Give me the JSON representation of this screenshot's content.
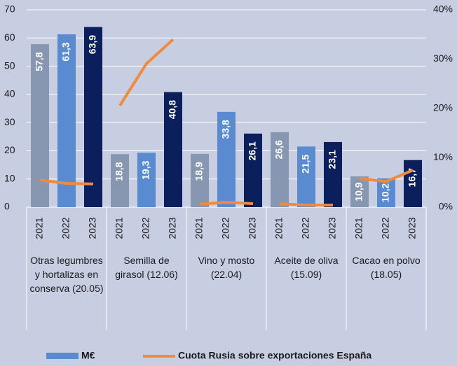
{
  "chart_data": {
    "type": "bar",
    "categories": [
      "Otras legumbres y hortalizas en conserva (20.05)",
      "Semilla de girasol (12.06)",
      "Vino y mosto (22.04)",
      "Aceite de oliva  (15.09)",
      "Cacao en polvo (18.05)"
    ],
    "years": [
      "2021",
      "2022",
      "2023"
    ],
    "year_colors": [
      "#8797b2",
      "#5a8bd0",
      "#0b1f5c"
    ],
    "series": [
      {
        "name": "M€",
        "type": "bar",
        "color": "#5a8bd0",
        "values": [
          [
            57.8,
            61.3,
            63.9
          ],
          [
            18.8,
            19.3,
            40.8
          ],
          [
            18.9,
            33.8,
            26.1
          ],
          [
            26.6,
            21.5,
            23.1
          ],
          [
            10.9,
            10.2,
            16.7
          ]
        ],
        "value_labels": [
          [
            "57,8",
            "61,3",
            "63,9"
          ],
          [
            "18,8",
            "19,3",
            "40,8"
          ],
          [
            "18,9",
            "33,8",
            "26,1"
          ],
          [
            "26,6",
            "21,5",
            "23,1"
          ],
          [
            "10,9",
            "10,2",
            "16,7"
          ]
        ]
      },
      {
        "name": "Cuota Rusia sobre exportaciones España",
        "type": "line",
        "color": "#f08a3c",
        "axis": "y2",
        "values": [
          [
            5.5,
            4.8,
            4.7
          ],
          [
            20.6,
            29.1,
            34.0
          ],
          [
            0.6,
            1.0,
            0.7
          ],
          [
            0.7,
            0.4,
            0.4
          ],
          [
            5.8,
            5.2,
            7.5
          ]
        ]
      }
    ],
    "ylim": [
      0,
      70
    ],
    "yticks": [
      0,
      10,
      20,
      30,
      40,
      50,
      60,
      70
    ],
    "y2lim": [
      0,
      40
    ],
    "y2ticks": [
      {
        "value": 0,
        "label": "0%"
      },
      {
        "value": 10,
        "label": "10%"
      },
      {
        "value": 20,
        "label": "20%"
      },
      {
        "value": 30,
        "label": "30%"
      },
      {
        "value": 40,
        "label": "40%"
      }
    ],
    "grid": true
  }
}
